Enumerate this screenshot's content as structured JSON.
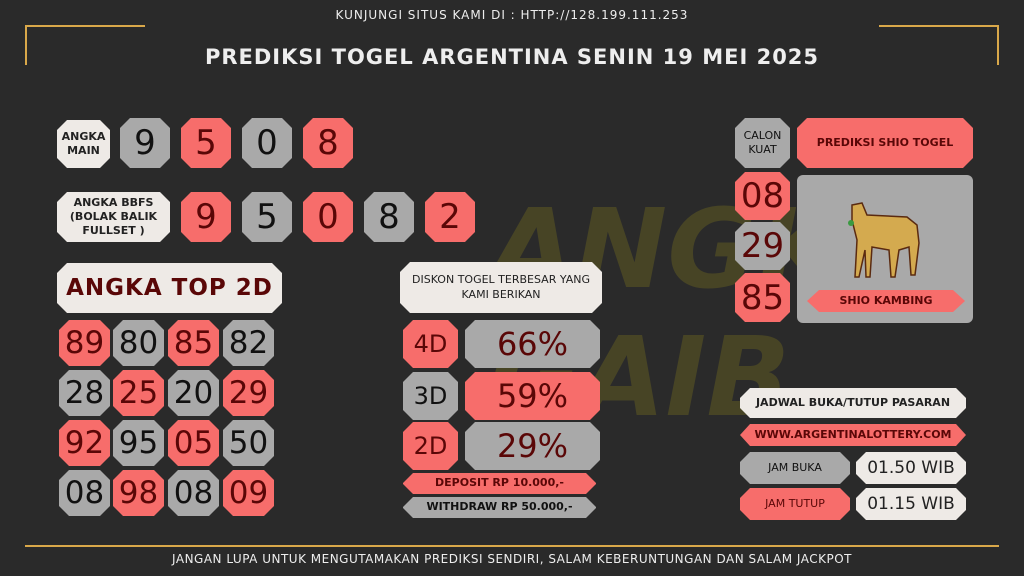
{
  "header": {
    "top_text": "KUNJUNGI SITUS KAMI DI : HTTP://128.199.111.253",
    "title": "PREDIKSI TOGEL ARGENTINA SENIN 19 MEI 2025"
  },
  "watermark": "ANGKA GAIB",
  "angka_main": {
    "label": "ANGKA MAIN",
    "digits": [
      "9",
      "5",
      "0",
      "8"
    ]
  },
  "bbfs": {
    "label": "ANGKA BBFS (BOLAK BALIK FULLSET )",
    "digits": [
      "9",
      "5",
      "0",
      "8",
      "2"
    ]
  },
  "top2d": {
    "label": "ANGKA TOP 2D",
    "rows": [
      [
        "89",
        "80",
        "85",
        "82"
      ],
      [
        "28",
        "25",
        "20",
        "29"
      ],
      [
        "92",
        "95",
        "05",
        "50"
      ],
      [
        "08",
        "98",
        "08",
        "09"
      ]
    ]
  },
  "diskon": {
    "title": "DISKON TOGEL TERBESAR YANG KAMI BERIKAN",
    "rows": [
      {
        "label": "4D",
        "value": "66%"
      },
      {
        "label": "3D",
        "value": "59%"
      },
      {
        "label": "2D",
        "value": "29%"
      }
    ],
    "deposit": "DEPOSIT RP 10.000,-",
    "withdraw": "WITHDRAW RP 50.000,-"
  },
  "shio": {
    "calon_label": "CALON KUAT",
    "numbers": [
      "08",
      "29",
      "85"
    ],
    "title": "PREDIKSI SHIO TOGEL",
    "name": "SHIO KAMBING",
    "icon": "goat-icon"
  },
  "jadwal": {
    "title": "JADWAL BUKA/TUTUP PASARAN",
    "website": "WWW.ARGENTINALOTTERY.COM",
    "buka_label": "JAM BUKA",
    "buka_value": "01.50 WIB",
    "tutup_label": "JAM TUTUP",
    "tutup_value": "01.15 WIB"
  },
  "footer": "JANGAN LUPA UNTUK MENGUTAMAKAN PREDIKSI SENDIRI, SALAM KEBERUNTUNGAN DAN SALAM JACKPOT",
  "colors": {
    "salmon": "#f76d6b",
    "gray": "#a9a9a9",
    "light": "#eeeae6",
    "gold": "#d9a84a",
    "background": "#2a2a2a"
  }
}
